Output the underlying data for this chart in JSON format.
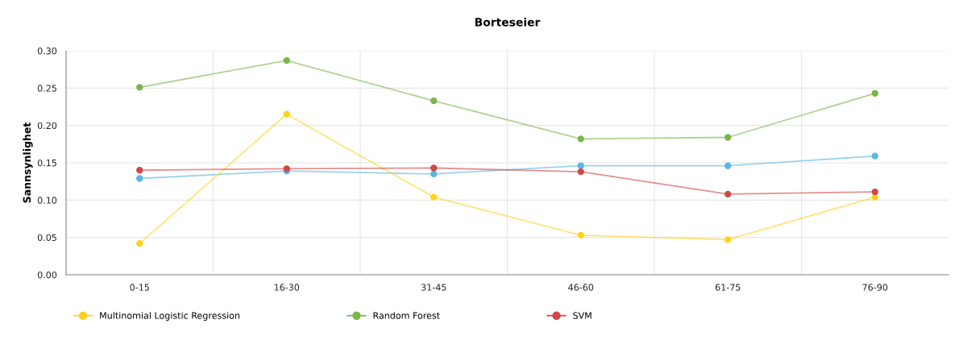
{
  "chart_data": {
    "type": "line",
    "title": "Borteseier",
    "ylabel": "Sannsynlighet",
    "categories": [
      "0-15",
      "16-30",
      "31-45",
      "46-60",
      "61-75",
      "76-90"
    ],
    "series": [
      {
        "color": "#5bb5e0",
        "values": [
          0.129,
          0.139,
          0.135,
          0.146,
          0.146,
          0.159
        ]
      },
      {
        "name": "Multinomial Logistic Regression",
        "color": "#ffd21f",
        "values": [
          0.042,
          0.215,
          0.104,
          0.053,
          0.047,
          0.104
        ]
      },
      {
        "name": "Random Forest",
        "color": "#7ab648",
        "values": [
          0.251,
          0.287,
          0.233,
          0.182,
          0.184,
          0.243
        ]
      },
      {
        "name": "SVM",
        "color": "#d04848",
        "values": [
          0.14,
          0.142,
          0.143,
          0.138,
          0.108,
          0.111
        ]
      }
    ],
    "ylim": [
      0,
      0.3
    ],
    "yticks": [
      {
        "value": 0,
        "label": "0.00"
      },
      {
        "value": 0.05,
        "label": "0.05"
      },
      {
        "value": 0.1,
        "label": "0.10"
      },
      {
        "value": 0.15,
        "label": "0.15"
      },
      {
        "value": 0.2,
        "label": "0.20"
      },
      {
        "value": 0.25,
        "label": "0.25"
      },
      {
        "value": 0.3,
        "label": "0.30"
      }
    ],
    "grid": true,
    "legend": "bottom",
    "marker": "circle",
    "line_style": "solid"
  }
}
